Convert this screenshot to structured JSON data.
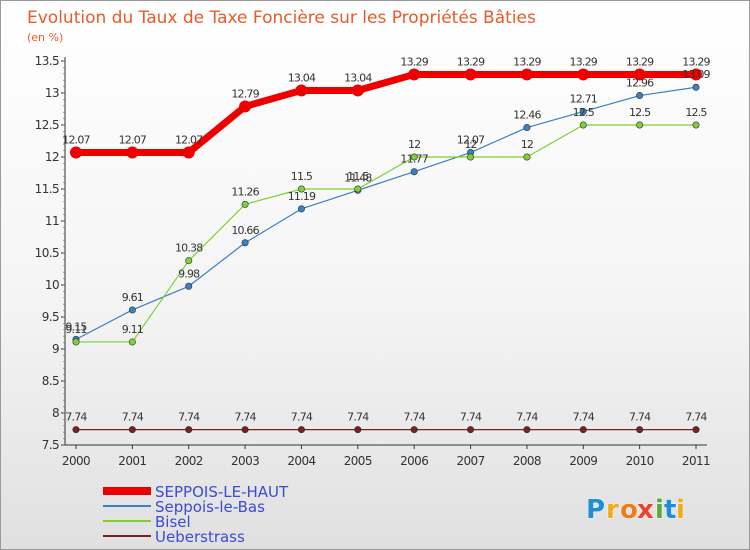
{
  "chart_data": {
    "type": "line",
    "title": "Evolution du Taux de Taxe Foncière sur les Propriétés Bâties",
    "subtitle": "(en %)",
    "x": [
      "2000",
      "2001",
      "2002",
      "2003",
      "2004",
      "2005",
      "2006",
      "2007",
      "2008",
      "2009",
      "2010",
      "2011"
    ],
    "yticks": [
      "7.5",
      "8",
      "8.5",
      "9",
      "9.5",
      "10",
      "10.5",
      "11",
      "11.5",
      "12",
      "12.5",
      "13",
      "13.5"
    ],
    "ylim": [
      7.5,
      13.5
    ],
    "grid": false,
    "legend_position": "bottom-left",
    "series": [
      {
        "name": "SEPPOIS-LE-HAUT",
        "color": "#ee0000",
        "values": [
          12.07,
          12.07,
          12.07,
          12.79,
          13.04,
          13.04,
          13.29,
          13.29,
          13.29,
          13.29,
          13.29,
          13.29
        ],
        "labels": [
          "12.07",
          "12.07",
          "12.07",
          "12.79",
          "13.04",
          "13.04",
          "13.29",
          "13.29",
          "13.29",
          "13.29",
          "13.29",
          "13.29"
        ]
      },
      {
        "name": "Seppois-le-Bas",
        "color": "#3b7fc4",
        "values": [
          9.15,
          9.61,
          9.98,
          10.66,
          11.19,
          11.48,
          11.77,
          12.07,
          12.46,
          12.71,
          12.96,
          13.09
        ],
        "labels": [
          "9.15",
          "9.61",
          "9.98",
          "10.66",
          "11.19",
          "11.48",
          "11.77",
          "12.07",
          "12.46",
          "12.71",
          "12.96",
          "13.09"
        ]
      },
      {
        "name": "Bisel",
        "color": "#7ed034",
        "values": [
          9.11,
          9.11,
          10.38,
          11.26,
          11.5,
          11.5,
          12,
          12,
          12,
          12.5,
          12.5,
          12.5
        ],
        "labels": [
          "9.11",
          "9.11",
          "10.38",
          "11.26",
          "11.5",
          "11.5",
          "12",
          "12",
          "12",
          "12.5",
          "12.5",
          "12.5"
        ]
      },
      {
        "name": "Ueberstrass",
        "color": "#7a2020",
        "values": [
          7.74,
          7.74,
          7.74,
          7.74,
          7.74,
          7.74,
          7.74,
          7.74,
          7.74,
          7.74,
          7.74,
          7.74
        ],
        "labels": [
          "7.74",
          "7.74",
          "7.74",
          "7.74",
          "7.74",
          "7.74",
          "7.74",
          "7.74",
          "7.74",
          "7.74",
          "7.74",
          "7.74"
        ]
      }
    ]
  },
  "brand": {
    "letters": [
      "P",
      "r",
      "o",
      "x",
      "i",
      "t",
      "i"
    ],
    "colors": [
      "#1e8fd5",
      "#f2a91b",
      "#f07b1e",
      "#e8432c",
      "#5aa832",
      "#1e8fd5",
      "#f2a91b"
    ]
  }
}
